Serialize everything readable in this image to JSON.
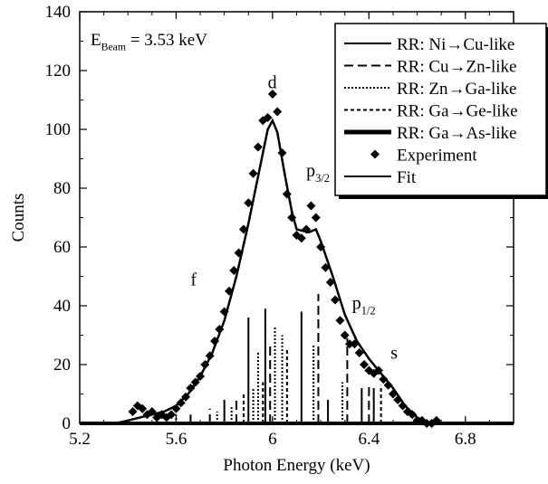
{
  "chart_data": {
    "type": "scatter",
    "xlabel": "Photon Energy (keV)",
    "ylabel": "Counts",
    "xlim": [
      5.2,
      7.0
    ],
    "ylim": [
      0,
      140
    ],
    "x_ticks": [
      5.2,
      5.6,
      6,
      6.4,
      6.8
    ],
    "x_tick_labels": [
      "5.2",
      "5.6",
      "6",
      "6.4",
      "6.8"
    ],
    "y_ticks": [
      0,
      20,
      40,
      60,
      80,
      100,
      120,
      140
    ],
    "y_tick_labels": [
      "0",
      "20",
      "40",
      "60",
      "80",
      "100",
      "120",
      "140"
    ],
    "grid": false,
    "legend_position": "top-right",
    "annotation": {
      "text": "E",
      "sub": "Beam",
      "rest": " = 3.53 keV"
    },
    "peak_labels": [
      {
        "text": "d",
        "sub": "",
        "x": 5.98,
        "y": 114
      },
      {
        "text": "p",
        "sub": "3/2",
        "x": 6.14,
        "y": 84
      },
      {
        "text": "f",
        "sub": "",
        "x": 5.66,
        "y": 47
      },
      {
        "text": "p",
        "sub": "1/2",
        "x": 6.33,
        "y": 39
      },
      {
        "text": "s",
        "sub": "",
        "x": 6.49,
        "y": 22
      }
    ],
    "legend": [
      {
        "label": "RR: Ni→Cu-like",
        "style": "solid"
      },
      {
        "label": "RR: Cu→Zn-like",
        "style": "longdash"
      },
      {
        "label": "RR: Zn→Ga-like",
        "style": "dotted"
      },
      {
        "label": "RR: Ga→Ge-like",
        "style": "shortdash"
      },
      {
        "label": "RR: Ga→As-like",
        "style": "thick"
      },
      {
        "label": "Experiment",
        "style": "diamond"
      },
      {
        "label": "Fit",
        "style": "solid"
      }
    ],
    "experiment": [
      [
        5.42,
        4
      ],
      [
        5.44,
        6
      ],
      [
        5.46,
        5
      ],
      [
        5.48,
        3
      ],
      [
        5.5,
        4
      ],
      [
        5.52,
        2
      ],
      [
        5.54,
        3
      ],
      [
        5.56,
        2
      ],
      [
        5.58,
        3
      ],
      [
        5.6,
        5
      ],
      [
        5.62,
        7
      ],
      [
        5.64,
        9
      ],
      [
        5.66,
        12
      ],
      [
        5.68,
        14
      ],
      [
        5.7,
        16
      ],
      [
        5.72,
        20
      ],
      [
        5.74,
        23
      ],
      [
        5.76,
        28
      ],
      [
        5.78,
        32
      ],
      [
        5.8,
        38
      ],
      [
        5.82,
        45
      ],
      [
        5.84,
        52
      ],
      [
        5.86,
        58
      ],
      [
        5.88,
        66
      ],
      [
        5.9,
        75
      ],
      [
        5.92,
        85
      ],
      [
        5.94,
        94
      ],
      [
        5.96,
        103
      ],
      [
        5.98,
        104
      ],
      [
        6.0,
        112
      ],
      [
        6.02,
        106
      ],
      [
        6.04,
        92
      ],
      [
        6.06,
        78
      ],
      [
        6.08,
        70
      ],
      [
        6.1,
        64
      ],
      [
        6.12,
        63
      ],
      [
        6.14,
        66
      ],
      [
        6.16,
        74
      ],
      [
        6.18,
        70
      ],
      [
        6.2,
        60
      ],
      [
        6.22,
        53
      ],
      [
        6.24,
        48
      ],
      [
        6.26,
        42
      ],
      [
        6.28,
        35
      ],
      [
        6.3,
        30
      ],
      [
        6.32,
        27
      ],
      [
        6.34,
        27
      ],
      [
        6.36,
        24
      ],
      [
        6.38,
        20
      ],
      [
        6.4,
        18
      ],
      [
        6.42,
        17
      ],
      [
        6.44,
        18
      ],
      [
        6.46,
        15
      ],
      [
        6.48,
        13
      ],
      [
        6.5,
        10
      ],
      [
        6.52,
        8
      ],
      [
        6.54,
        6
      ],
      [
        6.56,
        4
      ],
      [
        6.58,
        3
      ],
      [
        6.6,
        1
      ],
      [
        6.62,
        1
      ],
      [
        6.64,
        0
      ],
      [
        6.66,
        0
      ],
      [
        6.68,
        1
      ]
    ],
    "fit": [
      [
        5.35,
        0
      ],
      [
        5.4,
        1
      ],
      [
        5.45,
        2
      ],
      [
        5.5,
        3
      ],
      [
        5.55,
        4
      ],
      [
        5.6,
        6
      ],
      [
        5.65,
        10
      ],
      [
        5.7,
        16
      ],
      [
        5.75,
        24
      ],
      [
        5.8,
        35
      ],
      [
        5.85,
        50
      ],
      [
        5.9,
        68
      ],
      [
        5.95,
        88
      ],
      [
        5.98,
        100
      ],
      [
        6.0,
        103
      ],
      [
        6.02,
        99
      ],
      [
        6.05,
        85
      ],
      [
        6.08,
        72
      ],
      [
        6.1,
        66
      ],
      [
        6.15,
        65
      ],
      [
        6.18,
        66
      ],
      [
        6.2,
        62
      ],
      [
        6.25,
        50
      ],
      [
        6.3,
        37
      ],
      [
        6.35,
        28
      ],
      [
        6.4,
        22
      ],
      [
        6.45,
        17
      ],
      [
        6.5,
        12
      ],
      [
        6.55,
        6
      ],
      [
        6.6,
        2
      ],
      [
        6.65,
        0
      ],
      [
        6.7,
        0
      ]
    ],
    "rr_lines": [
      {
        "x": 5.8,
        "h": 8,
        "style": "solid"
      },
      {
        "x": 5.83,
        "h": 6,
        "style": "dotted"
      },
      {
        "x": 5.85,
        "h": 8,
        "style": "longdash"
      },
      {
        "x": 5.88,
        "h": 10,
        "style": "shortdash"
      },
      {
        "x": 5.9,
        "h": 36,
        "style": "solid"
      },
      {
        "x": 5.92,
        "h": 12,
        "style": "dotted"
      },
      {
        "x": 5.94,
        "h": 24,
        "style": "dotted"
      },
      {
        "x": 5.96,
        "h": 14,
        "style": "shortdash"
      },
      {
        "x": 5.97,
        "h": 39,
        "style": "solid"
      },
      {
        "x": 5.99,
        "h": 27,
        "style": "longdash"
      },
      {
        "x": 6.01,
        "h": 33,
        "style": "dotted"
      },
      {
        "x": 6.04,
        "h": 30,
        "style": "dotted"
      },
      {
        "x": 6.06,
        "h": 25,
        "style": "shortdash"
      },
      {
        "x": 6.12,
        "h": 38,
        "style": "solid"
      },
      {
        "x": 6.17,
        "h": 27,
        "style": "dotted"
      },
      {
        "x": 6.19,
        "h": 44,
        "style": "longdash"
      },
      {
        "x": 6.23,
        "h": 8,
        "style": "solid"
      },
      {
        "x": 6.29,
        "h": 14,
        "style": "dotted"
      },
      {
        "x": 6.31,
        "h": 29,
        "style": "longdash"
      },
      {
        "x": 6.37,
        "h": 12,
        "style": "solid"
      },
      {
        "x": 6.4,
        "h": 13,
        "style": "longdash"
      },
      {
        "x": 6.42,
        "h": 12,
        "style": "solid"
      },
      {
        "x": 6.45,
        "h": 13,
        "style": "shortdash"
      },
      {
        "x": 5.52,
        "h": 2,
        "style": "solid"
      },
      {
        "x": 5.6,
        "h": 3,
        "style": "dotted"
      },
      {
        "x": 5.66,
        "h": 3,
        "style": "solid"
      },
      {
        "x": 5.74,
        "h": 5,
        "style": "longdash"
      },
      {
        "x": 5.77,
        "h": 4,
        "style": "dotted"
      }
    ]
  }
}
